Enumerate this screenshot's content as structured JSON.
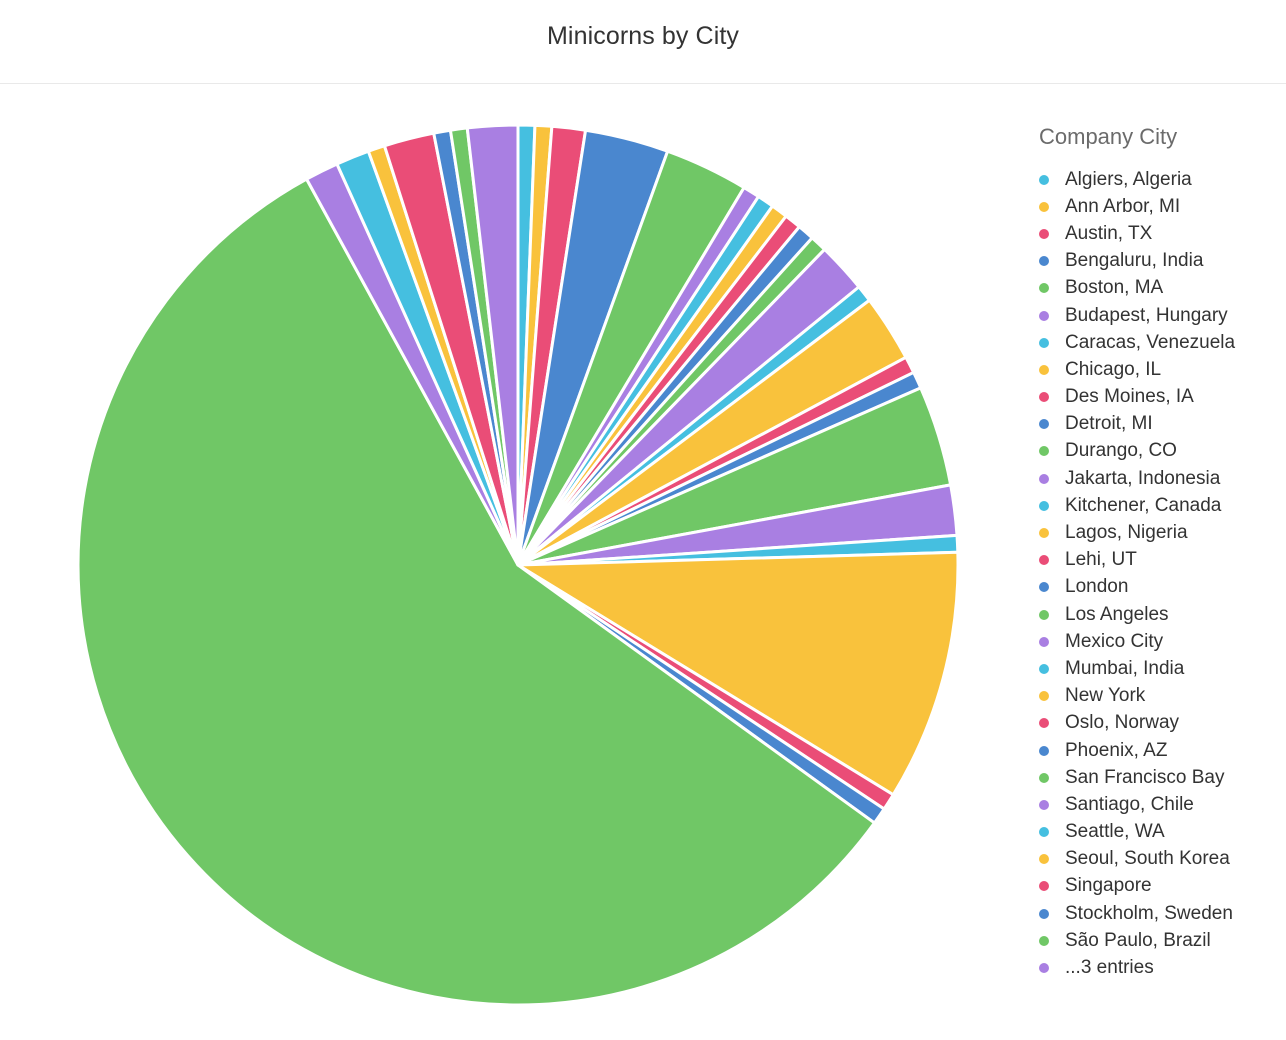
{
  "title": "Minicorns by City",
  "legend": {
    "title": "Company City"
  },
  "colors": {
    "cyan": "#45bfe0",
    "yellow": "#f9c23c",
    "pink": "#ea4d77",
    "blue": "#4a87cf",
    "green": "#70c766",
    "purple": "#a97fe2"
  },
  "chart_data": {
    "type": "pie",
    "title": "Minicorns by City",
    "legend_title": "Company City",
    "legend_position": "right",
    "slices": [
      {
        "label": "Algiers, Algeria",
        "value": 1,
        "color": "#45bfe0"
      },
      {
        "label": "Ann Arbor, MI",
        "value": 1,
        "color": "#f9c23c"
      },
      {
        "label": "Austin, TX",
        "value": 2,
        "color": "#ea4d77"
      },
      {
        "label": "Bengaluru, India",
        "value": 5,
        "color": "#4a87cf"
      },
      {
        "label": "Boston, MA",
        "value": 5,
        "color": "#70c766"
      },
      {
        "label": "Budapest, Hungary",
        "value": 1,
        "color": "#a97fe2"
      },
      {
        "label": "Caracas, Venezuela",
        "value": 1,
        "color": "#45bfe0"
      },
      {
        "label": "Chicago, IL",
        "value": 1,
        "color": "#f9c23c"
      },
      {
        "label": "Des Moines, IA",
        "value": 1,
        "color": "#ea4d77"
      },
      {
        "label": "Detroit, MI",
        "value": 1,
        "color": "#4a87cf"
      },
      {
        "label": "Durango, CO",
        "value": 1,
        "color": "#70c766"
      },
      {
        "label": "Jakarta, Indonesia",
        "value": 3,
        "color": "#a97fe2"
      },
      {
        "label": "Kitchener, Canada",
        "value": 1,
        "color": "#45bfe0"
      },
      {
        "label": "Lagos, Nigeria",
        "value": 4,
        "color": "#f9c23c"
      },
      {
        "label": "Lehi, UT",
        "value": 1,
        "color": "#ea4d77"
      },
      {
        "label": "London",
        "value": 1,
        "color": "#4a87cf"
      },
      {
        "label": "Los Angeles",
        "value": 6,
        "color": "#70c766"
      },
      {
        "label": "Mexico City",
        "value": 3,
        "color": "#a97fe2"
      },
      {
        "label": "Mumbai, India",
        "value": 1,
        "color": "#45bfe0"
      },
      {
        "label": "New York",
        "value": 15,
        "color": "#f9c23c"
      },
      {
        "label": "Oslo, Norway",
        "value": 1,
        "color": "#ea4d77"
      },
      {
        "label": "Phoenix, AZ",
        "value": 1,
        "color": "#4a87cf"
      },
      {
        "label": "San Francisco Bay",
        "value": 93,
        "color": "#70c766"
      },
      {
        "label": "Santiago, Chile",
        "value": 2,
        "color": "#a97fe2"
      },
      {
        "label": "Seattle, WA",
        "value": 2,
        "color": "#45bfe0"
      },
      {
        "label": "Seoul, South Korea",
        "value": 1,
        "color": "#f9c23c"
      },
      {
        "label": "Singapore",
        "value": 3,
        "color": "#ea4d77"
      },
      {
        "label": "Stockholm, Sweden",
        "value": 1,
        "color": "#4a87cf"
      },
      {
        "label": "São Paulo, Brazil",
        "value": 1,
        "color": "#70c766"
      },
      {
        "label": "...3 entries",
        "value": 3,
        "color": "#a97fe2"
      }
    ]
  }
}
